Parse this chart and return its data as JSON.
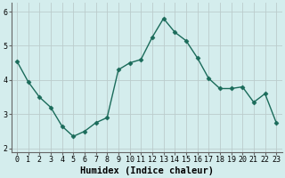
{
  "x": [
    0,
    1,
    2,
    3,
    4,
    5,
    6,
    7,
    8,
    9,
    10,
    11,
    12,
    13,
    14,
    15,
    16,
    17,
    18,
    19,
    20,
    21,
    22,
    23
  ],
  "y": [
    4.55,
    3.95,
    3.5,
    3.2,
    2.65,
    2.35,
    2.5,
    2.75,
    2.9,
    4.3,
    4.5,
    4.6,
    5.25,
    5.8,
    5.4,
    5.15,
    4.65,
    4.05,
    3.75,
    3.75,
    3.8,
    3.35,
    3.6,
    2.75
  ],
  "line_color": "#1a6b5a",
  "marker": "D",
  "marker_size": 2.5,
  "bg_color": "#d4eded",
  "grid_color": "#bbcccc",
  "spine_color": "#666666",
  "xlabel": "Humidex (Indice chaleur)",
  "xlim": [
    -0.5,
    23.5
  ],
  "ylim": [
    1.9,
    6.25
  ],
  "yticks": [
    2,
    3,
    4,
    5,
    6
  ],
  "xticks": [
    0,
    1,
    2,
    3,
    4,
    5,
    6,
    7,
    8,
    9,
    10,
    11,
    12,
    13,
    14,
    15,
    16,
    17,
    18,
    19,
    20,
    21,
    22,
    23
  ],
  "tick_fontsize": 6,
  "xlabel_fontsize": 7.5,
  "linewidth": 1.0
}
